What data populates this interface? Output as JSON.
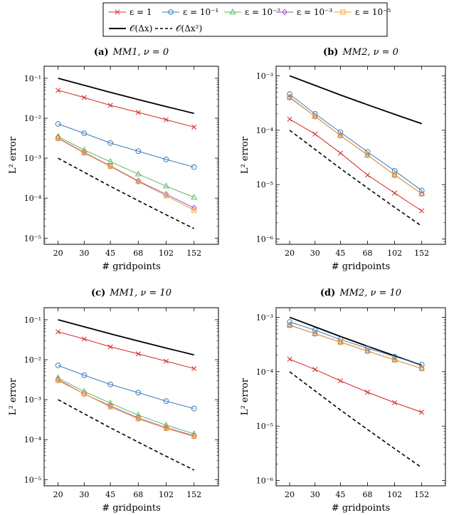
{
  "legend": {
    "row1": [
      {
        "label": "ε = 1",
        "color": "#d62728",
        "marker": "x"
      },
      {
        "label": "ε = 10⁻¹",
        "color": "#3b7bbf",
        "marker": "circle"
      },
      {
        "label": "ε = 10⁻²",
        "color": "#5cb85c",
        "marker": "triangle"
      },
      {
        "label": "ε = 10⁻³",
        "color": "#9b4fbf",
        "marker": "diamond"
      },
      {
        "label": "ε = 10⁻⁵",
        "color": "#f0a030",
        "marker": "square"
      }
    ],
    "row2": [
      {
        "label": "𝒪(Δx)",
        "style": "solid"
      },
      {
        "label": "𝒪(Δx²)",
        "style": "dashed"
      }
    ]
  },
  "chart_data": [
    {
      "type": "line",
      "title": "(a) MM1, ν = 0",
      "title_bold": "(a)",
      "title_rest": "MM1, ν = 0",
      "xlabel": "# gridpoints",
      "ylabel": "L² error",
      "yscale": "log",
      "categories": [
        "20",
        "30",
        "45",
        "68",
        "102",
        "152"
      ],
      "x": [
        20,
        30,
        45,
        68,
        102,
        152
      ],
      "ylim": [
        7e-06,
        0.2
      ],
      "yticks": [
        {
          "v": 0.1,
          "label": "10⁻¹"
        },
        {
          "v": 0.01,
          "label": "10⁻²"
        },
        {
          "v": 0.001,
          "label": "10⁻³"
        },
        {
          "v": 0.0001,
          "label": "10⁻⁴"
        },
        {
          "v": 1e-05,
          "label": "10⁻⁵"
        }
      ],
      "series": [
        {
          "name": "ε = 1",
          "values": [
            0.05,
            0.033,
            0.021,
            0.014,
            0.0092,
            0.006
          ]
        },
        {
          "name": "ε = 10⁻¹",
          "values": [
            0.0072,
            0.0042,
            0.0024,
            0.0015,
            0.00093,
            0.0006
          ]
        },
        {
          "name": "ε = 10⁻²",
          "values": [
            0.0035,
            0.0016,
            0.00082,
            0.0004,
            0.0002,
            0.000105
          ]
        },
        {
          "name": "ε = 10⁻³",
          "values": [
            0.0032,
            0.0014,
            0.00064,
            0.00027,
            0.000125,
            5.7e-05
          ]
        },
        {
          "name": "ε = 10⁻⁵",
          "values": [
            0.0031,
            0.00135,
            0.00062,
            0.00026,
            0.000115,
            5e-05
          ]
        }
      ],
      "reference": [
        {
          "name": "𝒪(Δx)",
          "values": [
            0.1,
            0.0667,
            0.0444,
            0.0294,
            0.0196,
            0.0132
          ]
        },
        {
          "name": "𝒪(Δx²)",
          "values": [
            0.001,
            0.000444,
            0.000198,
            8.65e-05,
            3.84e-05,
            1.73e-05
          ]
        }
      ]
    },
    {
      "type": "line",
      "title": "(b) MM2, ν = 0",
      "title_bold": "(b)",
      "title_rest": "MM2, ν = 0",
      "xlabel": "# gridpoints",
      "ylabel": "L² error",
      "yscale": "log",
      "categories": [
        "20",
        "30",
        "45",
        "68",
        "102",
        "152"
      ],
      "x": [
        20,
        30,
        45,
        68,
        102,
        152
      ],
      "ylim": [
        8e-07,
        0.0015
      ],
      "yticks": [
        {
          "v": 0.001,
          "label": "10⁻³"
        },
        {
          "v": 0.0001,
          "label": "10⁻⁴"
        },
        {
          "v": 1e-05,
          "label": "10⁻⁵"
        },
        {
          "v": 1e-06,
          "label": "10⁻⁶"
        }
      ],
      "series": [
        {
          "name": "ε = 1",
          "values": [
            0.00016,
            8.5e-05,
            3.8e-05,
            1.5e-05,
            7e-06,
            3.3e-06
          ]
        },
        {
          "name": "ε = 10⁻¹",
          "values": [
            0.00046,
            0.0002,
            9.2e-05,
            4e-05,
            1.8e-05,
            7.8e-06
          ]
        },
        {
          "name": "ε = 10⁻²",
          "values": [
            0.0004,
            0.00018,
            8e-05,
            3.5e-05,
            1.5e-05,
            6.8e-06
          ]
        },
        {
          "name": "ε = 10⁻³",
          "values": [
            0.0004,
            0.00018,
            8e-05,
            3.5e-05,
            1.5e-05,
            6.8e-06
          ]
        },
        {
          "name": "ε = 10⁻⁵",
          "values": [
            0.00041,
            0.00018,
            8e-05,
            3.5e-05,
            1.5e-05,
            6.8e-06
          ]
        }
      ],
      "reference": [
        {
          "name": "𝒪(Δx)",
          "values": [
            0.001,
            0.000667,
            0.000444,
            0.000294,
            0.000196,
            0.000132
          ]
        },
        {
          "name": "𝒪(Δx²)",
          "values": [
            0.0001,
            4.44e-05,
            1.98e-05,
            8.65e-06,
            3.84e-06,
            1.73e-06
          ]
        }
      ]
    },
    {
      "type": "line",
      "title": "(c) MM1, ν = 10",
      "title_bold": "(c)",
      "title_rest": "MM1, ν = 10",
      "xlabel": "# gridpoints",
      "ylabel": "L² error",
      "yscale": "log",
      "categories": [
        "20",
        "30",
        "45",
        "68",
        "102",
        "152"
      ],
      "x": [
        20,
        30,
        45,
        68,
        102,
        152
      ],
      "ylim": [
        7e-06,
        0.2
      ],
      "yticks": [
        {
          "v": 0.1,
          "label": "10⁻¹"
        },
        {
          "v": 0.01,
          "label": "10⁻²"
        },
        {
          "v": 0.001,
          "label": "10⁻³"
        },
        {
          "v": 0.0001,
          "label": "10⁻⁴"
        },
        {
          "v": 1e-05,
          "label": "10⁻⁵"
        }
      ],
      "series": [
        {
          "name": "ε = 1",
          "values": [
            0.05,
            0.033,
            0.021,
            0.014,
            0.0092,
            0.006
          ]
        },
        {
          "name": "ε = 10⁻¹",
          "values": [
            0.0072,
            0.0041,
            0.0024,
            0.0015,
            0.00092,
            0.0006
          ]
        },
        {
          "name": "ε = 10⁻²",
          "values": [
            0.0035,
            0.0016,
            0.00082,
            0.00041,
            0.00023,
            0.00014
          ]
        },
        {
          "name": "ε = 10⁻³",
          "values": [
            0.0032,
            0.0014,
            0.0007,
            0.00035,
            0.0002,
            0.000125
          ]
        },
        {
          "name": "ε = 10⁻⁵",
          "values": [
            0.003,
            0.0014,
            0.00066,
            0.00033,
            0.00019,
            0.00012
          ]
        }
      ],
      "reference": [
        {
          "name": "𝒪(Δx)",
          "values": [
            0.1,
            0.0667,
            0.0444,
            0.0294,
            0.0196,
            0.0132
          ]
        },
        {
          "name": "𝒪(Δx²)",
          "values": [
            0.001,
            0.000444,
            0.000198,
            8.65e-05,
            3.84e-05,
            1.73e-05
          ]
        }
      ]
    },
    {
      "type": "line",
      "title": "(d) MM2, ν = 10",
      "title_bold": "(d)",
      "title_rest": "MM2, ν = 10",
      "xlabel": "# gridpoints",
      "ylabel": "L² error",
      "yscale": "log",
      "categories": [
        "20",
        "30",
        "45",
        "68",
        "102",
        "152"
      ],
      "x": [
        20,
        30,
        45,
        68,
        102,
        152
      ],
      "ylim": [
        8e-07,
        0.0015
      ],
      "yticks": [
        {
          "v": 0.001,
          "label": "10⁻³"
        },
        {
          "v": 0.0001,
          "label": "10⁻⁴"
        },
        {
          "v": 1e-05,
          "label": "10⁻⁵"
        },
        {
          "v": 1e-06,
          "label": "10⁻⁶"
        }
      ],
      "series": [
        {
          "name": "ε = 1",
          "values": [
            0.00017,
            0.00011,
            6.8e-05,
            4.2e-05,
            2.7e-05,
            1.8e-05
          ]
        },
        {
          "name": "ε = 10⁻¹",
          "values": [
            0.00082,
            0.00058,
            0.00039,
            0.00027,
            0.00019,
            0.000135
          ]
        },
        {
          "name": "ε = 10⁻²",
          "values": [
            0.00072,
            0.0005,
            0.00035,
            0.00024,
            0.000165,
            0.000115
          ]
        },
        {
          "name": "ε = 10⁻³",
          "values": [
            0.00072,
            0.0005,
            0.00035,
            0.00024,
            0.000165,
            0.000115
          ]
        },
        {
          "name": "ε = 10⁻⁵",
          "values": [
            0.00071,
            0.0005,
            0.00035,
            0.00024,
            0.000165,
            0.000115
          ]
        }
      ],
      "reference": [
        {
          "name": "𝒪(Δx)",
          "values": [
            0.001,
            0.000667,
            0.000444,
            0.000294,
            0.000196,
            0.000132
          ]
        },
        {
          "name": "𝒪(Δx²)",
          "values": [
            0.0001,
            4.44e-05,
            1.98e-05,
            8.65e-06,
            3.84e-06,
            1.73e-06
          ]
        }
      ]
    }
  ]
}
